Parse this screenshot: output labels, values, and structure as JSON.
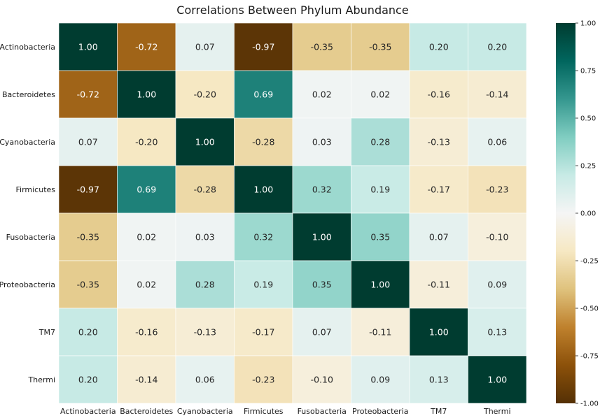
{
  "chart_data": {
    "type": "heatmap",
    "title": "Correlations Between Phylum Abundance",
    "xlabel": "",
    "ylabel": "",
    "row_labels": [
      "Actinobacteria",
      "Bacteroidetes",
      "Cyanobacteria",
      "Firmicutes",
      "Fusobacteria",
      "Proteobacteria",
      "TM7",
      "Thermi"
    ],
    "column_labels": [
      "Actinobacteria",
      "Bacteroidetes",
      "Cyanobacteria",
      "Firmicutes",
      "Fusobacteria",
      "Proteobacteria",
      "TM7",
      "Thermi"
    ],
    "values": [
      [
        1.0,
        -0.72,
        0.07,
        -0.97,
        -0.35,
        -0.35,
        0.2,
        0.2
      ],
      [
        -0.72,
        1.0,
        -0.2,
        0.69,
        0.02,
        0.02,
        -0.16,
        -0.14
      ],
      [
        0.07,
        -0.2,
        1.0,
        -0.28,
        0.03,
        0.28,
        -0.13,
        0.06
      ],
      [
        -0.97,
        0.69,
        -0.28,
        1.0,
        0.32,
        0.19,
        -0.17,
        -0.23
      ],
      [
        -0.35,
        0.02,
        0.03,
        0.32,
        1.0,
        0.35,
        0.07,
        -0.1
      ],
      [
        -0.35,
        0.02,
        0.28,
        0.19,
        0.35,
        1.0,
        -0.11,
        0.09
      ],
      [
        0.2,
        -0.16,
        -0.13,
        -0.17,
        0.07,
        -0.11,
        1.0,
        0.13
      ],
      [
        0.2,
        -0.14,
        0.06,
        -0.23,
        -0.1,
        0.09,
        0.13,
        1.0
      ]
    ],
    "value_format": "2 decimals",
    "colormap": "BrBG",
    "vmin": -1.0,
    "vmax": 1.0,
    "colorbar_ticks": [
      "-1.00",
      "-0.75",
      "-0.50",
      "-0.25",
      "0.00",
      "0.25",
      "0.50",
      "0.75",
      "1.00"
    ],
    "colorbar_tick_values": [
      -1.0,
      -0.75,
      -0.5,
      -0.25,
      0.0,
      0.25,
      0.5,
      0.75,
      1.0
    ],
    "colorbar_position": "right",
    "grid": false
  }
}
